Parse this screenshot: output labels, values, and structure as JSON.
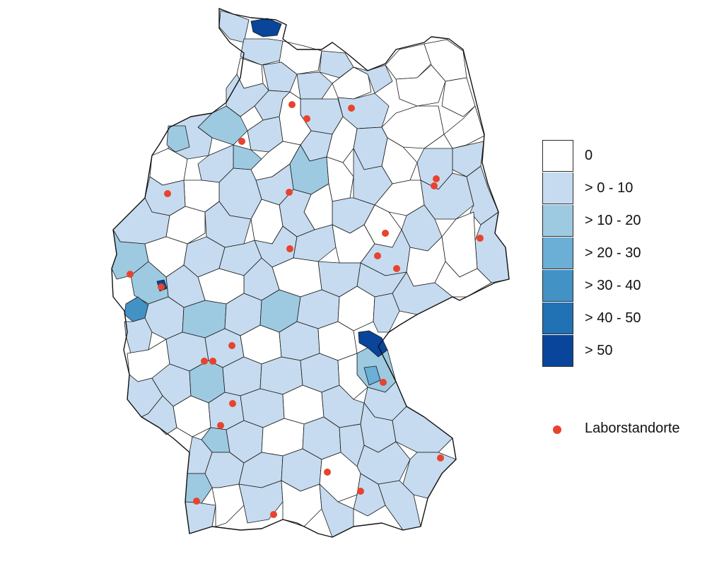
{
  "map": {
    "region": "Germany districts",
    "legend": {
      "classes": [
        {
          "label": "0",
          "color": "#ffffff"
        },
        {
          "label": "> 0 - 10",
          "color": "#c6dbef"
        },
        {
          "label": "> 10 - 20",
          "color": "#9ecae1"
        },
        {
          "label": "> 20 - 30",
          "color": "#6baed6"
        },
        {
          "label": "> 30 - 40",
          "color": "#4292c6"
        },
        {
          "label": "> 40 - 50",
          "color": "#2171b5"
        },
        {
          "label": "> 50",
          "color": "#08459b"
        }
      ],
      "points": {
        "label": "Laborstandorte",
        "color": "#e8432e"
      }
    }
  }
}
